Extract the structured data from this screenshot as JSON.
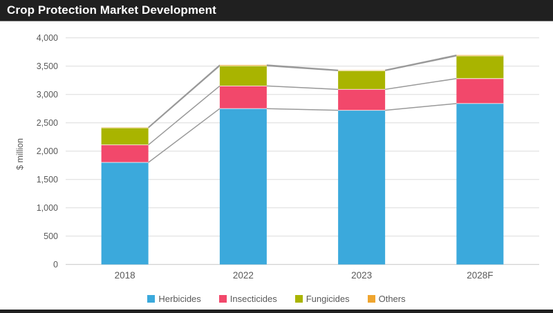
{
  "header": {
    "title": "Crop Protection Market Development"
  },
  "colors": {
    "header_bg": "#202020",
    "header_text": "#FFFFFF",
    "background": "#FFFFFF",
    "grid": "#DBDBDB",
    "axis": "#C6C6C6",
    "connector": "#999999",
    "label": "#595959",
    "segment_divider": "#FFFFFF"
  },
  "chart_data": {
    "type": "bar",
    "stacked": true,
    "title": "Crop Protection Market Development",
    "xlabel": "",
    "ylabel": "$ million",
    "ylim": [
      0,
      4000
    ],
    "ytick_interval": 500,
    "ytick_labels": [
      "0",
      "500",
      "1,000",
      "1,500",
      "2,000",
      "2,500",
      "3,000",
      "3,500",
      "4,000"
    ],
    "categories": [
      "2018",
      "2022",
      "2023",
      "2028F"
    ],
    "series": [
      {
        "name": "Herbicides",
        "color": "#3BA9DC",
        "values": [
          1800,
          2750,
          2720,
          2840
        ]
      },
      {
        "name": "Insecticides",
        "color": "#F2486B",
        "values": [
          310,
          400,
          370,
          440
        ]
      },
      {
        "name": "Fungicides",
        "color": "#A9B400",
        "values": [
          300,
          355,
          330,
          400
        ]
      },
      {
        "name": "Others",
        "color": "#EFA52F",
        "values": [
          10,
          15,
          10,
          15
        ]
      }
    ],
    "grid": true,
    "legend_position": "bottom",
    "series_connector_lines": true
  }
}
